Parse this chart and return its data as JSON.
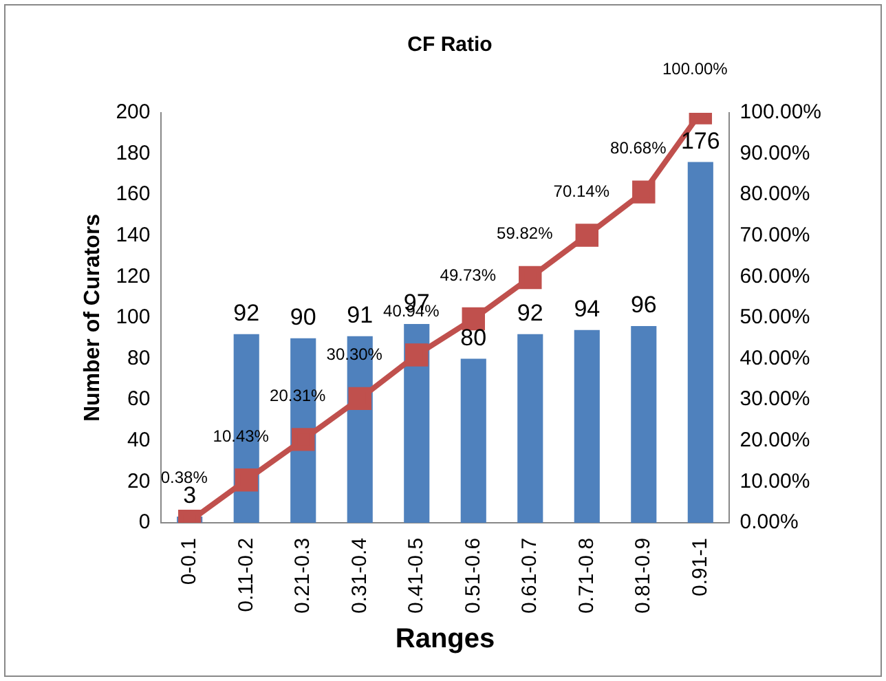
{
  "chart_data": {
    "type": "bar",
    "title": "CF Ratio",
    "xlabel": "Ranges",
    "ylabel": "Number of Curators",
    "categories": [
      "0-0.1",
      "0.11-0.2",
      "0.21-0.3",
      "0.31-0.4",
      "0.41-0.5",
      "0.51-0.6",
      "0.61-0.7",
      "0.71-0.8",
      "0.81-0.9",
      "0.91-1"
    ],
    "series": [
      {
        "type": "bar",
        "color": "#4f81bd",
        "values": [
          3,
          92,
          90,
          91,
          97,
          80,
          92,
          94,
          96,
          176
        ],
        "value_labels": [
          "3",
          "92",
          "90",
          "91",
          "97",
          "80",
          "92",
          "94",
          "96",
          "176"
        ]
      },
      {
        "type": "line",
        "axis": "y2",
        "color": "#c0504d",
        "marker": "square",
        "values": [
          0.38,
          10.43,
          20.31,
          30.3,
          40.94,
          49.73,
          59.82,
          70.14,
          80.68,
          100.0
        ],
        "value_labels": [
          "0.38%",
          "10.43%",
          "20.31%",
          "30.30%",
          "40.94%",
          "49.73%",
          "59.82%",
          "70.14%",
          "80.68%",
          "100.00%"
        ]
      }
    ],
    "ylim": [
      0,
      200
    ],
    "yticks": [
      0,
      20,
      40,
      60,
      80,
      100,
      120,
      140,
      160,
      180,
      200
    ],
    "y2lim": [
      0,
      100
    ],
    "y2ticks": [
      {
        "value": 0,
        "label": "0.00%"
      },
      {
        "value": 10,
        "label": "10.00%"
      },
      {
        "value": 20,
        "label": "20.00%"
      },
      {
        "value": 30,
        "label": "30.00%"
      },
      {
        "value": 40,
        "label": "40.00%"
      },
      {
        "value": 50,
        "label": "50.00%"
      },
      {
        "value": 60,
        "label": "60.00%"
      },
      {
        "value": 70,
        "label": "70.00%"
      },
      {
        "value": 80,
        "label": "80.00%"
      },
      {
        "value": 90,
        "label": "90.00%"
      },
      {
        "value": 100,
        "label": "100.00%"
      }
    ],
    "grid": false,
    "legend": false
  }
}
